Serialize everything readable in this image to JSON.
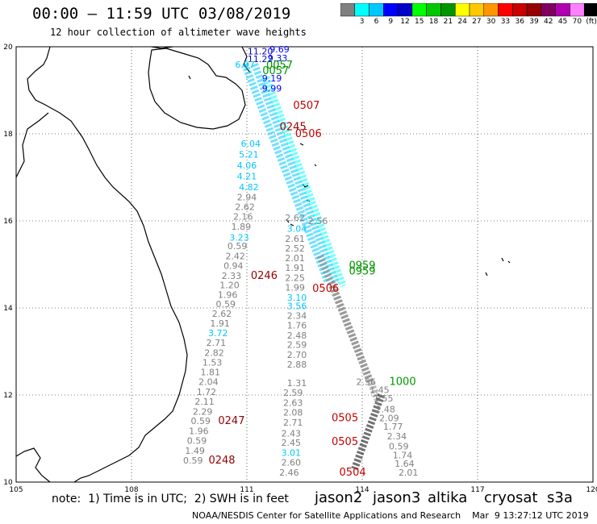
{
  "title": "00:00 – 11:59 UTC 03/08/2019",
  "subtitle": "12 hour collection of altimeter wave heights",
  "colorbar": {
    "unit": "(ft)",
    "colors": [
      "#808080",
      "#00ffff",
      "#00c8ff",
      "#0000ff",
      "#0000c8",
      "#00ff00",
      "#00c800",
      "#009600",
      "#ffff00",
      "#ffc800",
      "#ff9600",
      "#ff0000",
      "#c80000",
      "#960000",
      "#800060",
      "#b000b0",
      "#ff80ff",
      "#000000"
    ],
    "labels": [
      "3",
      "6",
      "9",
      "12",
      "15",
      "18",
      "21",
      "24",
      "27",
      "30",
      "33",
      "36",
      "39",
      "42",
      "45",
      "70"
    ]
  },
  "map": {
    "lon_ticks": [
      "105",
      "108",
      "111",
      "114",
      "117",
      "120"
    ],
    "lat_ticks": [
      "20",
      "18",
      "16",
      "14",
      "12",
      "10"
    ],
    "lon_range": [
      105,
      120
    ],
    "lat_range": [
      10,
      20
    ],
    "grid": "dotted"
  },
  "wave_labels": [
    {
      "text": "11.20",
      "lon": 111.35,
      "lat": 19.82,
      "color": "#0000c8"
    },
    {
      "text": "9.69",
      "lon": 111.85,
      "lat": 19.87,
      "color": "#0000ff"
    },
    {
      "text": "11.22",
      "lon": 111.35,
      "lat": 19.65,
      "color": "#0000c8"
    },
    {
      "text": "9.33",
      "lon": 111.8,
      "lat": 19.67,
      "color": "#0000ff"
    },
    {
      "text": "0057",
      "lon": 111.85,
      "lat": 19.5,
      "color": "#009600"
    },
    {
      "text": "0057",
      "lon": 111.75,
      "lat": 19.37,
      "color": "#009600"
    },
    {
      "text": "6.97",
      "lon": 110.95,
      "lat": 19.52,
      "color": "#00c8ff"
    },
    {
      "text": "9.19",
      "lon": 111.65,
      "lat": 19.2,
      "color": "#0000ff"
    },
    {
      "text": "9.99",
      "lon": 111.65,
      "lat": 18.97,
      "color": "#0000ff"
    },
    {
      "text": "0507",
      "lon": 112.55,
      "lat": 18.57,
      "color": "#c80000"
    },
    {
      "text": "0245",
      "lon": 112.2,
      "lat": 18.08,
      "color": "#960000"
    },
    {
      "text": "0506",
      "lon": 112.6,
      "lat": 17.93,
      "color": "#c80000"
    },
    {
      "text": "6.04",
      "lon": 111.1,
      "lat": 17.7,
      "color": "#00c8ff"
    },
    {
      "text": "5.21",
      "lon": 111.05,
      "lat": 17.45,
      "color": "#00c8ff"
    },
    {
      "text": "4.06",
      "lon": 111.0,
      "lat": 17.2,
      "color": "#00c8ff"
    },
    {
      "text": "4.21",
      "lon": 111.0,
      "lat": 16.95,
      "color": "#00c8ff"
    },
    {
      "text": "4.82",
      "lon": 111.05,
      "lat": 16.7,
      "color": "#00c8ff"
    },
    {
      "text": "2.94",
      "lon": 111.0,
      "lat": 16.47,
      "color": "#808080"
    },
    {
      "text": "2.62",
      "lon": 110.95,
      "lat": 16.25,
      "color": "#808080"
    },
    {
      "text": "2.16",
      "lon": 110.9,
      "lat": 16.03,
      "color": "#808080"
    },
    {
      "text": "1.89",
      "lon": 110.85,
      "lat": 15.8,
      "color": "#808080"
    },
    {
      "text": "3.23",
      "lon": 110.8,
      "lat": 15.55,
      "color": "#00c8ff"
    },
    {
      "text": "0.59",
      "lon": 110.75,
      "lat": 15.35,
      "color": "#808080"
    },
    {
      "text": "2.42",
      "lon": 110.7,
      "lat": 15.12,
      "color": "#808080"
    },
    {
      "text": "0.94",
      "lon": 110.65,
      "lat": 14.9,
      "color": "#808080"
    },
    {
      "text": "2.33",
      "lon": 110.6,
      "lat": 14.67,
      "color": "#808080"
    },
    {
      "text": "0246",
      "lon": 111.45,
      "lat": 14.67,
      "color": "#960000"
    },
    {
      "text": "1.20",
      "lon": 110.55,
      "lat": 14.45,
      "color": "#808080"
    },
    {
      "text": "1.96",
      "lon": 110.5,
      "lat": 14.23,
      "color": "#808080"
    },
    {
      "text": "0.59",
      "lon": 110.45,
      "lat": 14.02,
      "color": "#808080"
    },
    {
      "text": "2.62",
      "lon": 110.35,
      "lat": 13.8,
      "color": "#808080"
    },
    {
      "text": "1.91",
      "lon": 110.3,
      "lat": 13.57,
      "color": "#808080"
    },
    {
      "text": "3.72",
      "lon": 110.25,
      "lat": 13.35,
      "color": "#00c8ff"
    },
    {
      "text": "2.71",
      "lon": 110.2,
      "lat": 13.13,
      "color": "#808080"
    },
    {
      "text": "2.82",
      "lon": 110.15,
      "lat": 12.9,
      "color": "#808080"
    },
    {
      "text": "1.53",
      "lon": 110.1,
      "lat": 12.68,
      "color": "#808080"
    },
    {
      "text": "1.81",
      "lon": 110.05,
      "lat": 12.45,
      "color": "#808080"
    },
    {
      "text": "2.04",
      "lon": 110.0,
      "lat": 12.23,
      "color": "#808080"
    },
    {
      "text": "1.72",
      "lon": 109.95,
      "lat": 12.0,
      "color": "#808080"
    },
    {
      "text": "2.11",
      "lon": 109.9,
      "lat": 11.78,
      "color": "#808080"
    },
    {
      "text": "2.29",
      "lon": 109.85,
      "lat": 11.55,
      "color": "#808080"
    },
    {
      "text": "0.59",
      "lon": 109.8,
      "lat": 11.33,
      "color": "#808080"
    },
    {
      "text": "0247",
      "lon": 110.6,
      "lat": 11.33,
      "color": "#960000"
    },
    {
      "text": "1.96",
      "lon": 109.75,
      "lat": 11.1,
      "color": "#808080"
    },
    {
      "text": "0.59",
      "lon": 109.7,
      "lat": 10.88,
      "color": "#808080"
    },
    {
      "text": "1.49",
      "lon": 109.65,
      "lat": 10.65,
      "color": "#808080"
    },
    {
      "text": "0.59",
      "lon": 109.6,
      "lat": 10.43,
      "color": "#808080"
    },
    {
      "text": "0248",
      "lon": 110.35,
      "lat": 10.43,
      "color": "#960000"
    },
    {
      "text": "2.62",
      "lon": 112.25,
      "lat": 16.0,
      "color": "#808080"
    },
    {
      "text": "2.56",
      "lon": 112.85,
      "lat": 15.93,
      "color": "#808080"
    },
    {
      "text": "3.04",
      "lon": 112.3,
      "lat": 15.75,
      "color": "#00c8ff"
    },
    {
      "text": "2.61",
      "lon": 112.25,
      "lat": 15.52,
      "color": "#808080"
    },
    {
      "text": "2.52",
      "lon": 112.25,
      "lat": 15.3,
      "color": "#808080"
    },
    {
      "text": "2.01",
      "lon": 112.25,
      "lat": 15.07,
      "color": "#808080"
    },
    {
      "text": "1.91",
      "lon": 112.25,
      "lat": 14.85,
      "color": "#808080"
    },
    {
      "text": "2.25",
      "lon": 112.25,
      "lat": 14.62,
      "color": "#808080"
    },
    {
      "text": "0959",
      "lon": 114.0,
      "lat": 14.9,
      "color": "#009600"
    },
    {
      "text": "0959",
      "lon": 114.0,
      "lat": 14.77,
      "color": "#009600"
    },
    {
      "text": "0506",
      "lon": 113.05,
      "lat": 14.37,
      "color": "#c80000"
    },
    {
      "text": "1.99",
      "lon": 112.25,
      "lat": 14.4,
      "color": "#808080"
    },
    {
      "text": "3.10",
      "lon": 112.3,
      "lat": 14.17,
      "color": "#00c8ff"
    },
    {
      "text": "3.56",
      "lon": 112.3,
      "lat": 13.97,
      "color": "#00c8ff"
    },
    {
      "text": "2.34",
      "lon": 112.3,
      "lat": 13.75,
      "color": "#808080"
    },
    {
      "text": "1.76",
      "lon": 112.3,
      "lat": 13.53,
      "color": "#808080"
    },
    {
      "text": "2.48",
      "lon": 112.3,
      "lat": 13.3,
      "color": "#808080"
    },
    {
      "text": "2.59",
      "lon": 112.3,
      "lat": 13.08,
      "color": "#808080"
    },
    {
      "text": "2.70",
      "lon": 112.3,
      "lat": 12.85,
      "color": "#808080"
    },
    {
      "text": "2.88",
      "lon": 112.3,
      "lat": 12.63,
      "color": "#808080"
    },
    {
      "text": "1.31",
      "lon": 112.3,
      "lat": 12.2,
      "color": "#808080"
    },
    {
      "text": "2.59",
      "lon": 112.2,
      "lat": 11.98,
      "color": "#808080"
    },
    {
      "text": "2.63",
      "lon": 112.2,
      "lat": 11.75,
      "color": "#808080"
    },
    {
      "text": "2.08",
      "lon": 112.2,
      "lat": 11.53,
      "color": "#808080"
    },
    {
      "text": "2.71",
      "lon": 112.2,
      "lat": 11.3,
      "color": "#808080"
    },
    {
      "text": "0505",
      "lon": 113.55,
      "lat": 11.4,
      "color": "#c80000"
    },
    {
      "text": "2.43",
      "lon": 112.15,
      "lat": 11.05,
      "color": "#808080"
    },
    {
      "text": "2.45",
      "lon": 112.15,
      "lat": 10.83,
      "color": "#808080"
    },
    {
      "text": "0505",
      "lon": 113.55,
      "lat": 10.85,
      "color": "#c80000"
    },
    {
      "text": "3.01",
      "lon": 112.15,
      "lat": 10.6,
      "color": "#00c8ff"
    },
    {
      "text": "2.60",
      "lon": 112.15,
      "lat": 10.38,
      "color": "#808080"
    },
    {
      "text": "2.46",
      "lon": 112.1,
      "lat": 10.15,
      "color": "#808080"
    },
    {
      "text": "0504",
      "lon": 113.75,
      "lat": 10.15,
      "color": "#c80000"
    },
    {
      "text": "2.56",
      "lon": 114.1,
      "lat": 12.23,
      "color": "#808080"
    },
    {
      "text": "1000",
      "lon": 115.05,
      "lat": 12.23,
      "color": "#009600"
    },
    {
      "text": "1.45",
      "lon": 114.45,
      "lat": 12.05,
      "color": "#808080"
    },
    {
      "text": "1.55",
      "lon": 114.55,
      "lat": 11.85,
      "color": "#808080"
    },
    {
      "text": "2.48",
      "lon": 114.6,
      "lat": 11.6,
      "color": "#808080"
    },
    {
      "text": "2.09",
      "lon": 114.7,
      "lat": 11.4,
      "color": "#808080"
    },
    {
      "text": "1.77",
      "lon": 114.8,
      "lat": 11.2,
      "color": "#808080"
    },
    {
      "text": "2.34",
      "lon": 114.9,
      "lat": 10.98,
      "color": "#808080"
    },
    {
      "text": "0.59",
      "lon": 114.95,
      "lat": 10.75,
      "color": "#808080"
    },
    {
      "text": "1.74",
      "lon": 115.05,
      "lat": 10.55,
      "color": "#808080"
    },
    {
      "text": "1.64",
      "lon": 115.1,
      "lat": 10.35,
      "color": "#808080"
    },
    {
      "text": "2.01",
      "lon": 115.2,
      "lat": 10.15,
      "color": "#808080"
    }
  ],
  "footer": {
    "note": "note:  1) Time is in UTC;  2) SWH is in feet",
    "satellites": [
      {
        "name": "jason2",
        "color": "#0000ff"
      },
      {
        "name": "jason3",
        "color": "#009600"
      },
      {
        "name": "altika",
        "color": "#ff9600"
      },
      {
        "name": "cryosat",
        "color": "#ff0000"
      },
      {
        "name": "s3a",
        "color": "#c80000"
      }
    ],
    "credit": "NOAA/NESDIS Center for Satellite Applications and Research    Mar  9 13:27:12 UTC 2019"
  }
}
